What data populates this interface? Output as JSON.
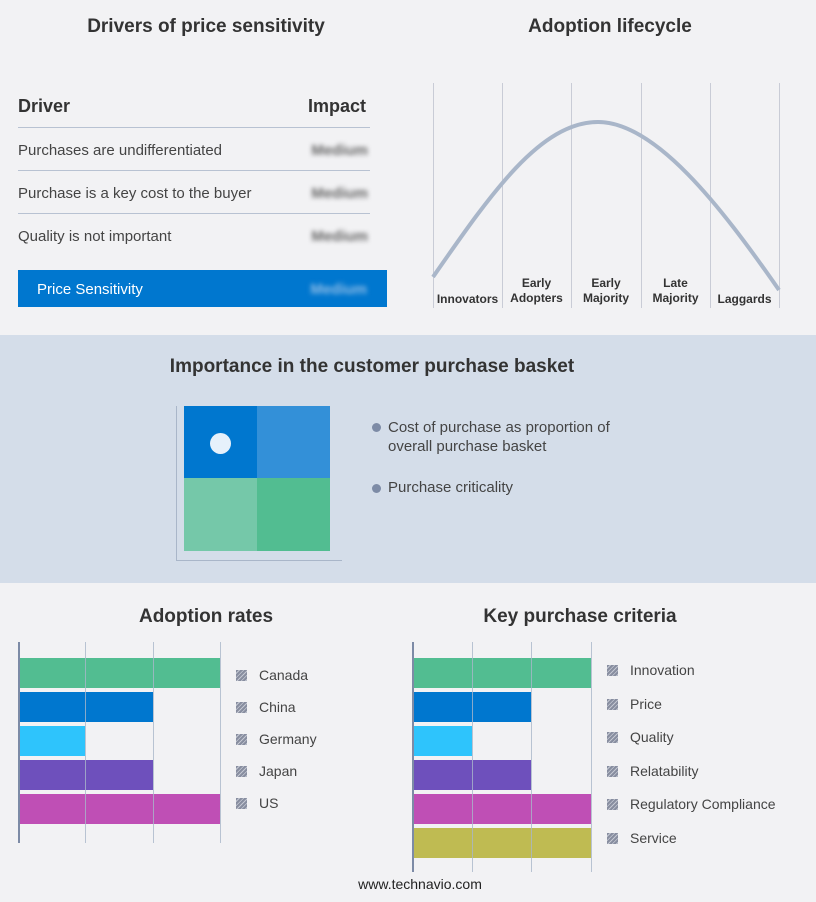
{
  "drivers": {
    "title": "Drivers of price sensitivity",
    "col_driver": "Driver",
    "col_impact": "Impact",
    "rows": [
      {
        "driver": "Purchases are undifferentiated",
        "impact": "Medium"
      },
      {
        "driver": "Purchase is a key cost to the buyer",
        "impact": "Medium"
      },
      {
        "driver": "Quality is not important",
        "impact": "Medium"
      }
    ],
    "summary": {
      "label": "Price Sensitivity",
      "impact": "Medium"
    }
  },
  "lifecycle": {
    "title": "Adoption lifecycle",
    "stages": [
      "Innovators",
      "Early\nAdopters",
      "Early\nMajority",
      "Late\nMajority",
      "Laggards"
    ]
  },
  "basket": {
    "title": "Importance in the customer purchase basket",
    "legend": [
      "Cost of purchase as proportion of overall purchase basket",
      "Purchase criticality"
    ],
    "colors": [
      "#0077cf",
      "#3390d8",
      "#75c8a9",
      "#52bd91"
    ]
  },
  "chart_data": [
    {
      "type": "bar",
      "title": "Adoption rates",
      "categories": [
        "Canada",
        "China",
        "Germany",
        "Japan",
        "US"
      ],
      "values": [
        3,
        2,
        1,
        2,
        3
      ],
      "xlim": [
        0,
        3
      ],
      "colors": [
        "#52bd91",
        "#0077cf",
        "#2ec4fc",
        "#6e50bc",
        "#bf4fb5"
      ],
      "grid": true,
      "legend": "right"
    },
    {
      "type": "bar",
      "title": "Key purchase criteria",
      "categories": [
        "Innovation",
        "Price",
        "Quality",
        "Relatability",
        "Regulatory Compliance",
        "Service"
      ],
      "values": [
        3,
        2,
        1,
        2,
        3,
        3
      ],
      "xlim": [
        0,
        3
      ],
      "colors": [
        "#52bd91",
        "#0077cf",
        "#2ec4fc",
        "#6e50bc",
        "#bf4fb5",
        "#bfbb52"
      ],
      "grid": true,
      "legend": "right"
    }
  ],
  "footer": "www.technavio.com"
}
